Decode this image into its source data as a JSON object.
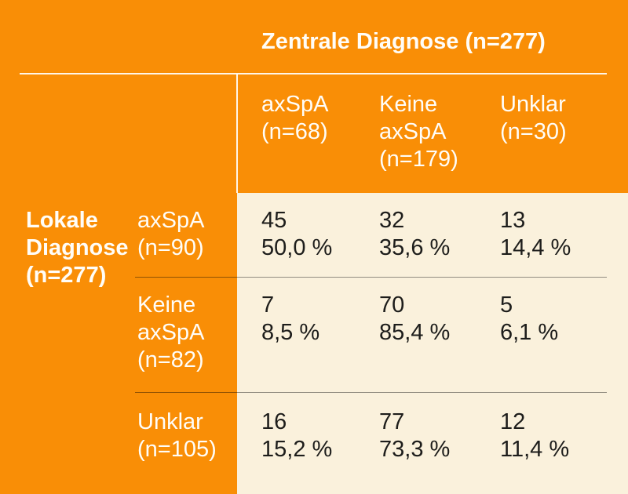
{
  "colors": {
    "orange_background": "#f98e06",
    "cream_panel": "#faf1dc",
    "light_text": "#fffdf8",
    "dark_text": "#1d1d1b"
  },
  "chart_data": {
    "type": "table",
    "column_group_label": "Zentrale Diagnose (n=277)",
    "row_group_label": "Lokale Diagnose (n=277)",
    "columns": [
      "axSpA (n=68)",
      "Keine axSpA (n=179)",
      "Unklar (n=30)"
    ],
    "rows": [
      "axSpA (n=90)",
      "Keine axSpA (n=82)",
      "Unklar (n=105)"
    ],
    "cells": [
      [
        {
          "count": "45",
          "pct": "50,0 %"
        },
        {
          "count": "32",
          "pct": "35,6 %"
        },
        {
          "count": "13",
          "pct": "14,4 %"
        }
      ],
      [
        {
          "count": "7",
          "pct": "8,5 %"
        },
        {
          "count": "70",
          "pct": "85,4 %"
        },
        {
          "count": "5",
          "pct": "6,1 %"
        }
      ],
      [
        {
          "count": "16",
          "pct": "15,2 %"
        },
        {
          "count": "77",
          "pct": "73,3 %"
        },
        {
          "count": "12",
          "pct": "11,4 %"
        }
      ]
    ]
  }
}
